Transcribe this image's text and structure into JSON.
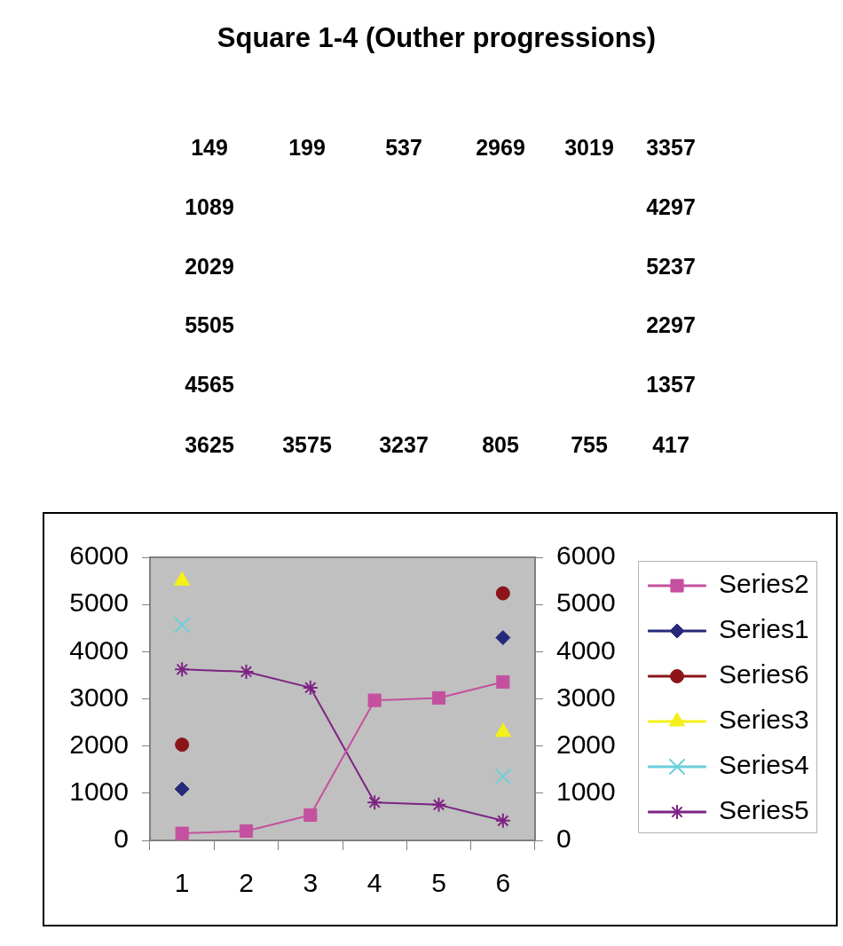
{
  "chart_data": [
    {
      "type": "other",
      "title": "Square 1-4 (Outher progressions)",
      "annotations": [
        "149",
        "199",
        "537",
        "2969",
        "3019",
        "3357",
        "1089",
        "4297",
        "2029",
        "5237",
        "5505",
        "2297",
        "4565",
        "1357",
        "3625",
        "3575",
        "3237",
        "805",
        "755",
        "417"
      ]
    },
    {
      "type": "line",
      "categories": [
        "1",
        "2",
        "3",
        "4",
        "5",
        "6"
      ],
      "series": [
        {
          "name": "Series2",
          "color": "#c4519f",
          "marker": "square",
          "values": [
            149,
            199,
            537,
            2969,
            3019,
            3357
          ]
        },
        {
          "name": "Series1",
          "type": "scatter",
          "color": "#27297a",
          "marker": "diamond",
          "values": [
            1089,
            null,
            null,
            null,
            null,
            4297
          ]
        },
        {
          "name": "Series6",
          "type": "scatter",
          "color": "#8b1518",
          "marker": "circle",
          "values": [
            2029,
            null,
            null,
            null,
            null,
            5237
          ]
        },
        {
          "name": "Series3",
          "type": "scatter",
          "color": "#f5ef1a",
          "marker": "triangle",
          "values": [
            5505,
            null,
            null,
            null,
            null,
            2297
          ]
        },
        {
          "name": "Series4",
          "type": "scatter",
          "color": "#6ccfdc",
          "marker": "cross",
          "values": [
            4565,
            null,
            null,
            null,
            null,
            1357
          ]
        },
        {
          "name": "Series5",
          "color": "#7d2483",
          "marker": "cross",
          "values": [
            3625,
            3575,
            3237,
            805,
            755,
            417
          ]
        }
      ],
      "ylim": [
        0,
        6000
      ],
      "yticks": [
        0,
        1000,
        2000,
        3000,
        4000,
        5000,
        6000
      ],
      "y2lim": [
        0,
        6000
      ],
      "y2ticks": [
        0,
        1000,
        2000,
        3000,
        4000,
        5000,
        6000
      ],
      "legend": "right"
    }
  ]
}
